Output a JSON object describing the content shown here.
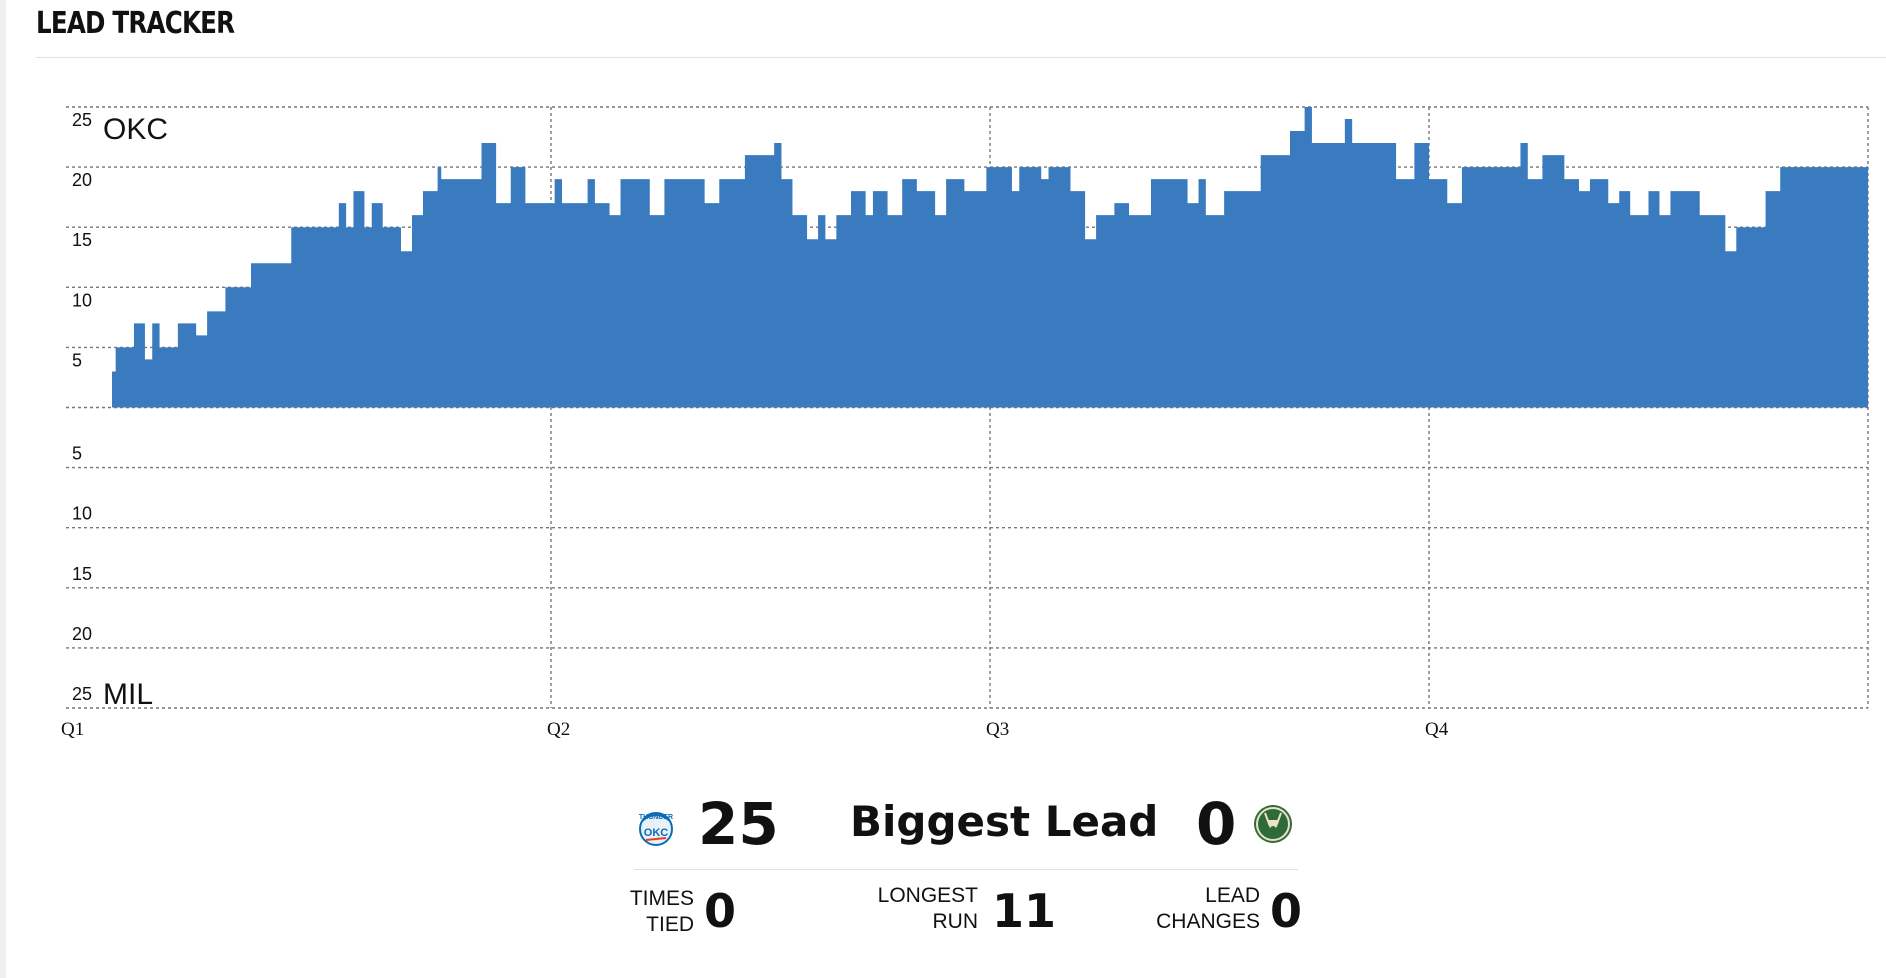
{
  "header": {
    "title": "LEAD TRACKER"
  },
  "chart_data": {
    "type": "area",
    "step": true,
    "teams": {
      "top": "OKC",
      "bottom": "MIL"
    },
    "x_ticks": [
      "Q1",
      "Q2",
      "Q3",
      "Q4"
    ],
    "x_range": [
      0,
      48
    ],
    "xlabel": "",
    "ylabel": "",
    "y_range": [
      -25,
      25
    ],
    "y_tick_labels_top": [
      "25",
      "20",
      "15",
      "10",
      "5"
    ],
    "y_tick_labels_bottom": [
      "5",
      "10",
      "15",
      "20",
      "25"
    ],
    "grid": true,
    "series": [
      {
        "color": "#3a7bbf",
        "points": [
          [
            0.0,
            3
          ],
          [
            0.1,
            5
          ],
          [
            0.6,
            7
          ],
          [
            0.9,
            4
          ],
          [
            1.1,
            7
          ],
          [
            1.3,
            5
          ],
          [
            1.8,
            7
          ],
          [
            2.3,
            6
          ],
          [
            2.6,
            8
          ],
          [
            3.1,
            10
          ],
          [
            3.8,
            12
          ],
          [
            4.9,
            15
          ],
          [
            6.2,
            17
          ],
          [
            6.4,
            15
          ],
          [
            6.6,
            18
          ],
          [
            6.9,
            15
          ],
          [
            7.1,
            17
          ],
          [
            7.4,
            15
          ],
          [
            7.9,
            13
          ],
          [
            8.2,
            16
          ],
          [
            8.5,
            18
          ],
          [
            8.9,
            20
          ],
          [
            9.0,
            19
          ],
          [
            10.1,
            22
          ],
          [
            10.5,
            17
          ],
          [
            10.9,
            20
          ],
          [
            11.3,
            17
          ],
          [
            12.1,
            19
          ],
          [
            12.3,
            17
          ],
          [
            13.0,
            19
          ],
          [
            13.2,
            17
          ],
          [
            13.6,
            16
          ],
          [
            13.9,
            19
          ],
          [
            14.7,
            16
          ],
          [
            15.1,
            19
          ],
          [
            16.2,
            17
          ],
          [
            16.6,
            19
          ],
          [
            17.3,
            21
          ],
          [
            18.1,
            22
          ],
          [
            18.3,
            19
          ],
          [
            18.6,
            16
          ],
          [
            19.0,
            14
          ],
          [
            19.3,
            16
          ],
          [
            19.5,
            14
          ],
          [
            19.8,
            16
          ],
          [
            20.2,
            18
          ],
          [
            20.6,
            16
          ],
          [
            20.8,
            18
          ],
          [
            21.2,
            16
          ],
          [
            21.6,
            19
          ],
          [
            22.0,
            18
          ],
          [
            22.5,
            16
          ],
          [
            22.8,
            19
          ],
          [
            23.3,
            18
          ],
          [
            23.9,
            20
          ],
          [
            24.6,
            18
          ],
          [
            24.8,
            20
          ],
          [
            25.4,
            19
          ],
          [
            25.6,
            20
          ],
          [
            26.2,
            18
          ],
          [
            26.6,
            14
          ],
          [
            26.9,
            16
          ],
          [
            27.4,
            17
          ],
          [
            27.8,
            16
          ],
          [
            28.4,
            19
          ],
          [
            29.4,
            17
          ],
          [
            29.7,
            19
          ],
          [
            29.9,
            16
          ],
          [
            30.4,
            18
          ],
          [
            31.4,
            21
          ],
          [
            32.2,
            23
          ],
          [
            32.6,
            25
          ],
          [
            32.8,
            22
          ],
          [
            33.7,
            24
          ],
          [
            33.9,
            22
          ],
          [
            34.5,
            22
          ],
          [
            35.1,
            19
          ],
          [
            35.6,
            22
          ],
          [
            36.0,
            19
          ],
          [
            36.5,
            17
          ],
          [
            36.9,
            20
          ],
          [
            38.5,
            22
          ],
          [
            38.7,
            19
          ],
          [
            39.1,
            21
          ],
          [
            39.7,
            19
          ],
          [
            40.1,
            18
          ],
          [
            40.4,
            19
          ],
          [
            40.9,
            17
          ],
          [
            41.2,
            18
          ],
          [
            41.5,
            16
          ],
          [
            42.0,
            18
          ],
          [
            42.3,
            16
          ],
          [
            42.6,
            18
          ],
          [
            43.4,
            16
          ],
          [
            44.1,
            13
          ],
          [
            44.4,
            15
          ],
          [
            45.2,
            18
          ],
          [
            45.6,
            20
          ],
          [
            46.6,
            20
          ]
        ]
      }
    ]
  },
  "stats": {
    "okc_biggest_lead": "25",
    "biggest_lead_label": "Biggest Lead",
    "mil_biggest_lead": "0",
    "times_tied_label_1": "TIMES",
    "times_tied_label_2": "TIED",
    "times_tied": "0",
    "longest_run_label_1": "LONGEST",
    "longest_run_label_2": "RUN",
    "longest_run": "11",
    "lead_changes_label_1": "LEAD",
    "lead_changes_label_2": "CHANGES",
    "lead_changes": "0",
    "okc_logo_text": "THUNDER",
    "okc_logo_sub": "OKC",
    "okc_color": "#0c6bb5",
    "okc_accent": "#ef3b24",
    "mil_color": "#2f6b3a",
    "mil_accent": "#eee1c6"
  }
}
